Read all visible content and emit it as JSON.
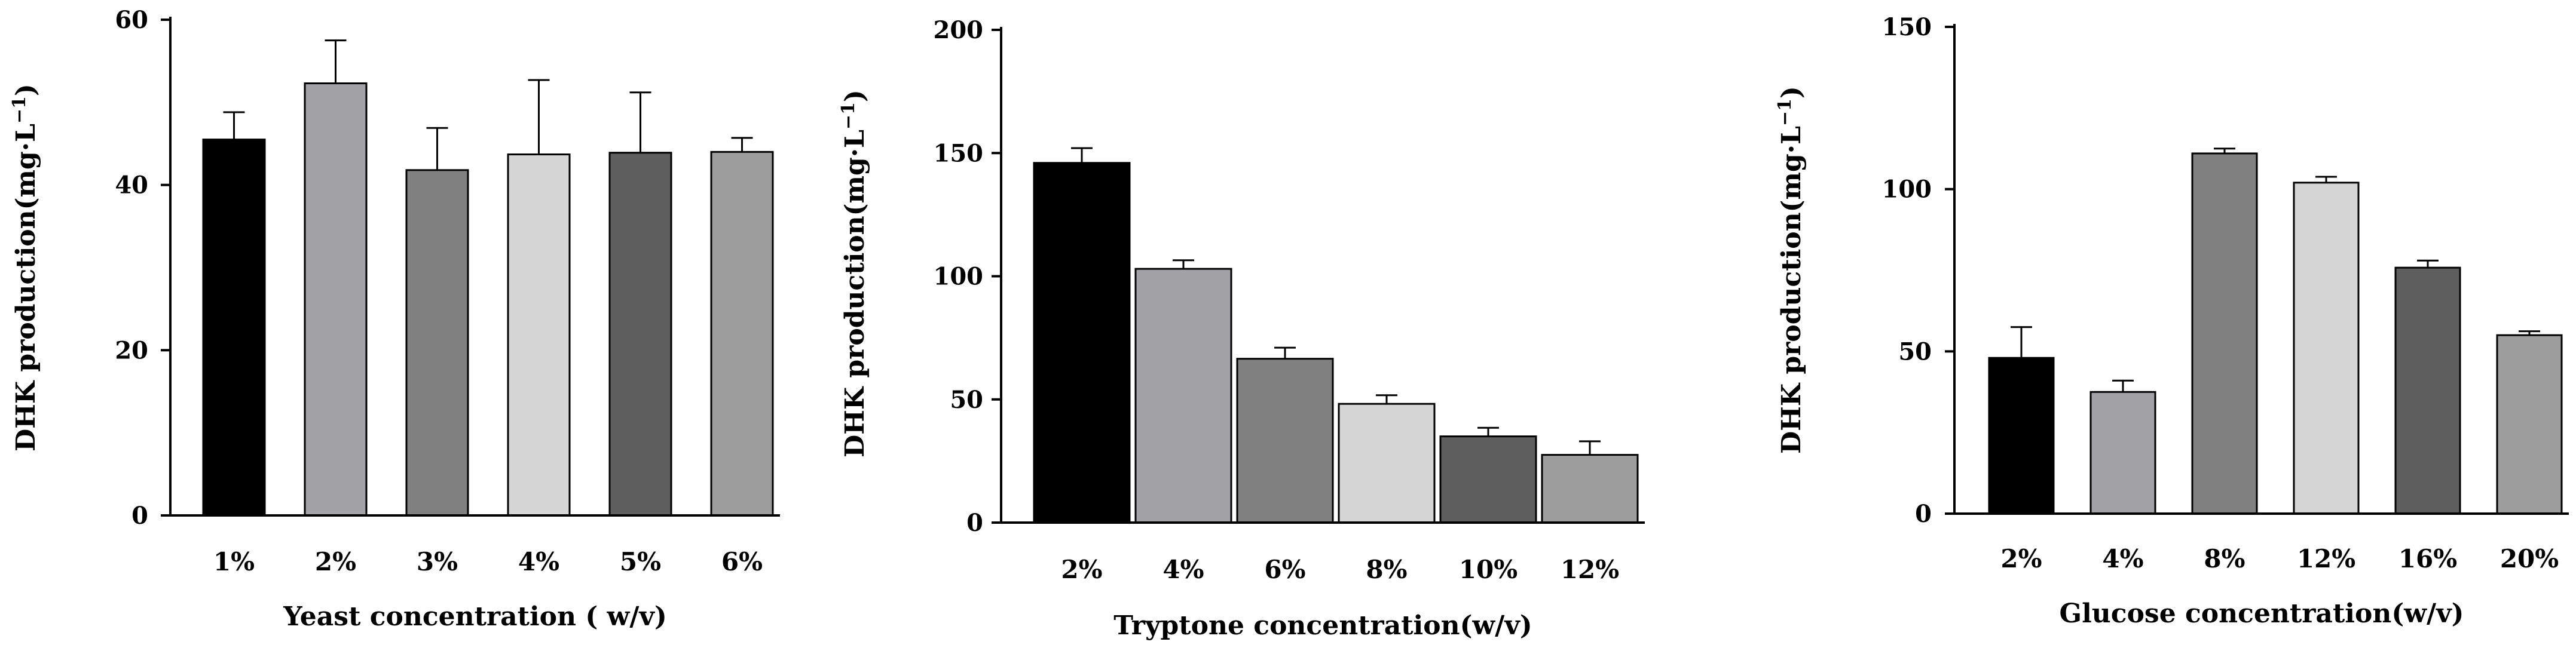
{
  "chart_data": [
    {
      "type": "bar",
      "categories": [
        "1%",
        "2%",
        "3%",
        "4%",
        "5%",
        "6%"
      ],
      "values": [
        45.5,
        52.3,
        41.8,
        43.7,
        43.9,
        44.0
      ],
      "errors": [
        3.3,
        5.2,
        5.1,
        9.0,
        7.3,
        1.7
      ],
      "bar_colors": [
        "#000000",
        "#a3a2a7",
        "#808080",
        "#d6d6d6",
        "#5e5e5e",
        "#9d9d9d"
      ],
      "xlabel": "Yeast concentration (  w/v)",
      "ylabel_main": "DHK production(mg·L",
      "ylabel_sup": "−1",
      "ylabel_close": ")",
      "ylim": [
        0,
        60
      ],
      "yticks": [
        "0",
        "20",
        "40",
        "60"
      ],
      "ytick_values": [
        0,
        20,
        40,
        60
      ]
    },
    {
      "type": "bar",
      "categories": [
        "2%",
        "4%",
        "6%",
        "8%",
        "10%",
        "12%"
      ],
      "values": [
        146,
        103,
        66.5,
        48.2,
        35.0,
        27.5
      ],
      "errors": [
        6.0,
        3.5,
        4.5,
        3.5,
        3.5,
        5.5
      ],
      "bar_colors": [
        "#000000",
        "#a3a2a7",
        "#808080",
        "#d6d6d6",
        "#5e5e5e",
        "#9d9d9d"
      ],
      "xlabel": "Tryptone concentration(w/v)",
      "ylabel_main": "DHK production(mg·L",
      "ylabel_sup": "−1",
      "ylabel_close": ")",
      "ylim": [
        0,
        200
      ],
      "yticks": [
        "0",
        "50",
        "100",
        "150",
        "200"
      ],
      "ytick_values": [
        0,
        50,
        100,
        150,
        200
      ]
    },
    {
      "type": "bar",
      "categories": [
        "2%",
        "4%",
        "8%",
        "12%",
        "16%",
        "20%"
      ],
      "values": [
        48.0,
        37.5,
        111,
        102,
        75.8,
        55.0
      ],
      "errors": [
        9.5,
        3.5,
        1.5,
        1.8,
        2.2,
        1.2
      ],
      "bar_colors": [
        "#000000",
        "#a3a2a7",
        "#808080",
        "#d6d6d6",
        "#5e5e5e",
        "#9d9d9d"
      ],
      "xlabel": "Glucose concentration(w/v)",
      "ylabel_main": "DHK production(mg·L",
      "ylabel_sup": "−1",
      "ylabel_close": ")",
      "ylim": [
        0,
        150
      ],
      "yticks": [
        "0",
        "50",
        "100",
        "150"
      ],
      "ytick_values": [
        0,
        50,
        100,
        150
      ]
    }
  ]
}
